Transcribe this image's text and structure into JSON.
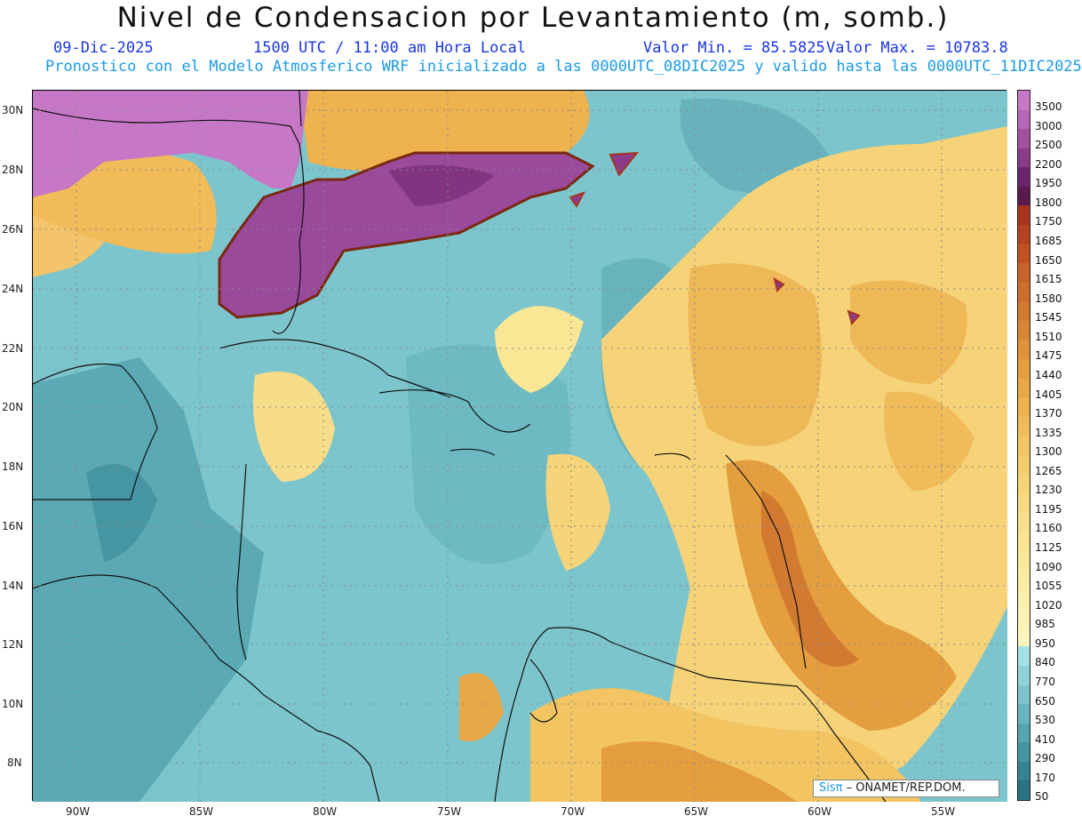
{
  "header": {
    "title": "Nivel de Condensacion por Levantamiento (m, somb.)",
    "date": "09-Dic-2025",
    "time": "1500 UTC / 11:00 am Hora Local",
    "min_label": "Valor Min. = 85.5825",
    "max_label": "Valor Max. = 10783.8",
    "model_line": "Pronostico con el Modelo Atmosferico WRF inicializado a las 0000UTC_08DIC2025 y valido hasta las  0000UTC_11DIC2025"
  },
  "axes": {
    "lat_labels": [
      "30N",
      "28N",
      "26N",
      "24N",
      "22N",
      "20N",
      "18N",
      "16N",
      "14N",
      "12N",
      "10N",
      "8N"
    ],
    "lon_labels": [
      "90W",
      "85W",
      "80W",
      "75W",
      "70W",
      "65W",
      "60W",
      "55W"
    ]
  },
  "colorbar": {
    "levels": [
      "3500",
      "3000",
      "2500",
      "2200",
      "1950",
      "1800",
      "1750",
      "1685",
      "1650",
      "1615",
      "1580",
      "1545",
      "1510",
      "1475",
      "1440",
      "1405",
      "1370",
      "1335",
      "1300",
      "1265",
      "1230",
      "1195",
      "1160",
      "1125",
      "1090",
      "1055",
      "1020",
      "985",
      "950",
      "840",
      "770",
      "650",
      "530",
      "410",
      "290",
      "170",
      "50"
    ],
    "colors": [
      "#c678c6",
      "#b566b8",
      "#a1509f",
      "#8a3b8a",
      "#6e2570",
      "#5a1a4e",
      "#a8341f",
      "#b5431f",
      "#c15322",
      "#c86228",
      "#cd6e2c",
      "#d27a30",
      "#d98634",
      "#e09238",
      "#e59e3e",
      "#e9a847",
      "#eeb24f",
      "#f0bb58",
      "#f2c462",
      "#f4cc6c",
      "#f6d376",
      "#f7da80",
      "#f8df89",
      "#f9e492",
      "#f9e99b",
      "#faeca3",
      "#fbefab",
      "#fbf2b4",
      "#fcf4bc",
      "#a4e0e6",
      "#8fd2d9",
      "#7bc4cb",
      "#67b4bd",
      "#55a4af",
      "#4494a1",
      "#358393",
      "#297385"
    ]
  },
  "credit": {
    "brand": "Sisπ",
    "text": " – ONAMET/REP.DOM."
  }
}
